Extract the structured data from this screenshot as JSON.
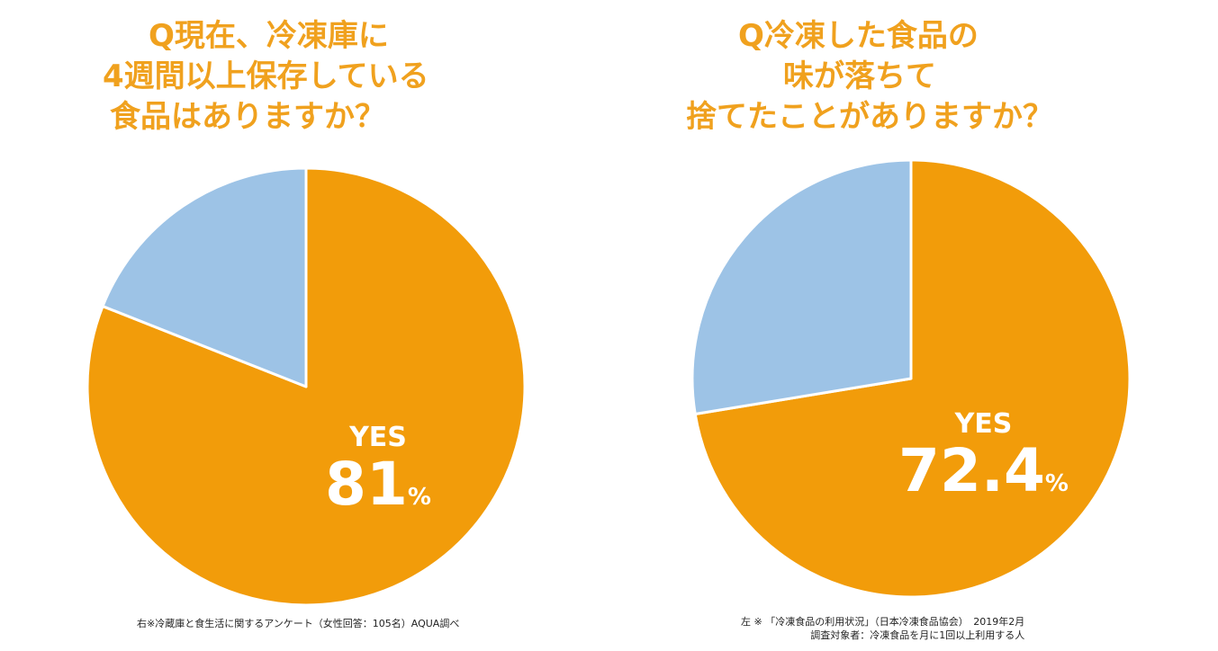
{
  "colors": {
    "title": "#F0A11E",
    "yes_slice": "#F29C0A",
    "other_slice": "#9DC3E6",
    "slice_border": "#ffffff",
    "label_text": "#ffffff"
  },
  "left": {
    "title_lines": [
      "Q現在、冷凍庫に",
      "4週間以上保存している",
      "食品はありますか？"
    ],
    "label_yes": "YES",
    "label_value": "81",
    "label_pct": "%",
    "note": "右※冷蔵庫と食生活に関するアンケート（女性回答：105名）AQUA調べ"
  },
  "right": {
    "title_lines": [
      "Q冷凍した食品の",
      "味が落ちて",
      "捨てたことがありますか？"
    ],
    "label_yes": "YES",
    "label_value": "72.4",
    "label_pct": "%",
    "note_lines": [
      "左 ※ 「冷凍食品の利用状況」（日本冷凍食品協会）　2019年2月",
      "調査対象者：冷凍食品を月に1回以上利用する人"
    ]
  },
  "chart_data": [
    {
      "type": "pie",
      "title": "Q現在、冷凍庫に4週間以上保存している食品はありますか？",
      "categories": [
        "YES",
        ""
      ],
      "values": [
        81,
        19
      ],
      "unit": "%",
      "colors": [
        "#F29C0A",
        "#9DC3E6"
      ]
    },
    {
      "type": "pie",
      "title": "Q冷凍した食品の味が落ちて捨てたことがありますか？",
      "categories": [
        "YES",
        ""
      ],
      "values": [
        72.4,
        27.6
      ],
      "unit": "%",
      "colors": [
        "#F29C0A",
        "#9DC3E6"
      ]
    }
  ]
}
